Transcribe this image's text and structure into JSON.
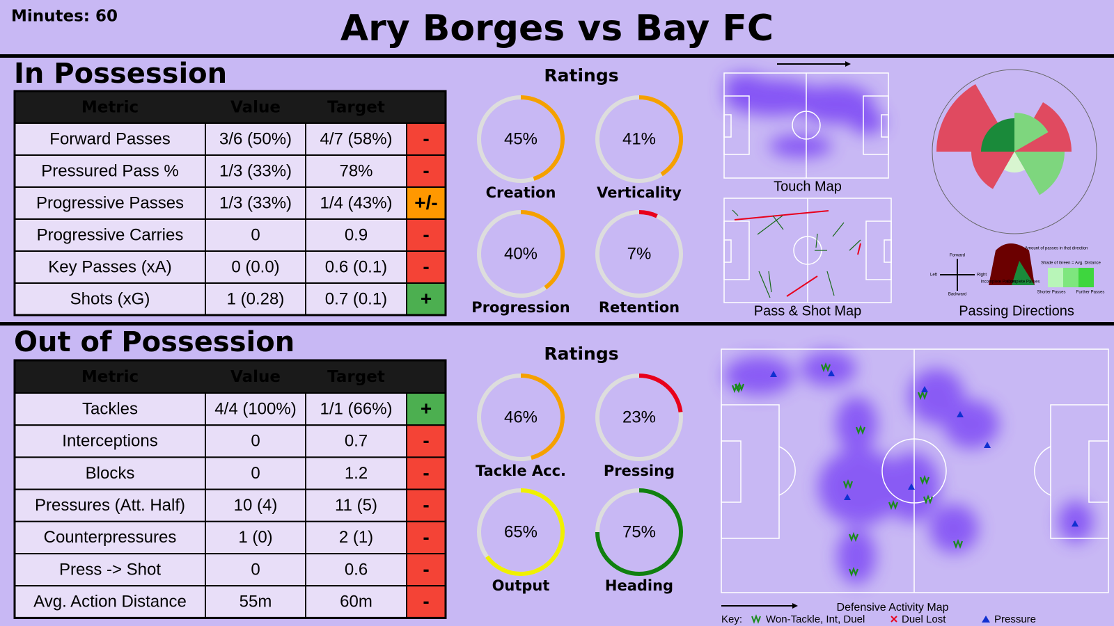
{
  "header": {
    "minutes": "Minutes: 60",
    "title": "Ary Borges vs Bay FC"
  },
  "in_possession": {
    "title": "In Possession",
    "columns": [
      "Metric",
      "Value",
      "Target"
    ],
    "rows": [
      {
        "metric": "Forward Passes",
        "value": "3/6 (50%)",
        "target": "4/7 (58%)",
        "status": "-",
        "color": "#f44336"
      },
      {
        "metric": "Pressured Pass %",
        "value": "1/3 (33%)",
        "target": "78%",
        "status": "-",
        "color": "#f44336"
      },
      {
        "metric": "Progressive Passes",
        "value": "1/3 (33%)",
        "target": "1/4 (43%)",
        "status": "+/-",
        "color": "#ff9800"
      },
      {
        "metric": "Progressive Carries",
        "value": "0",
        "target": "0.9",
        "status": "-",
        "color": "#f44336"
      },
      {
        "metric": "Key Passes (xA)",
        "value": "0 (0.0)",
        "target": "0.6 (0.1)",
        "status": "-",
        "color": "#f44336"
      },
      {
        "metric": "Shots (xG)",
        "value": "1 (0.28)",
        "target": "0.7 (0.1)",
        "status": "+",
        "color": "#4caf50"
      }
    ],
    "ratings": {
      "title": "Ratings",
      "items": [
        {
          "name": "Creation",
          "value": 45,
          "value_label": "45%",
          "color": "#f5a000"
        },
        {
          "name": "Verticality",
          "value": 41,
          "value_label": "41%",
          "color": "#f5a000"
        },
        {
          "name": "Progression",
          "value": 40,
          "value_label": "40%",
          "color": "#f5a000"
        },
        {
          "name": "Retention",
          "value": 7,
          "value_label": "7%",
          "color": "#e8001c"
        }
      ]
    },
    "maps": {
      "touch_map": "Touch Map",
      "pass_shot_map": "Pass & Shot Map",
      "passing_directions": "Passing Directions",
      "legend": {
        "forward": "Forward",
        "left": "Left",
        "right": "Right",
        "backward": "Backward",
        "amount": "Amount of passes in that direction",
        "incomplete": "Incomplete Passes",
        "complete": "Complete Passes",
        "shade": "Shade of Green = Avg. Distance",
        "shorter": "Shorter Passes",
        "further": "Further Passes"
      }
    }
  },
  "out_of_possession": {
    "title": "Out of Possession",
    "columns": [
      "Metric",
      "Value",
      "Target"
    ],
    "rows": [
      {
        "metric": "Tackles",
        "value": "4/4 (100%)",
        "target": "1/1 (66%)",
        "status": "+",
        "color": "#4caf50"
      },
      {
        "metric": "Interceptions",
        "value": "0",
        "target": "0.7",
        "status": "-",
        "color": "#f44336"
      },
      {
        "metric": "Blocks",
        "value": "0",
        "target": "1.2",
        "status": "-",
        "color": "#f44336"
      },
      {
        "metric": "Pressures (Att. Half)",
        "value": "10 (4)",
        "target": "11 (5)",
        "status": "-",
        "color": "#f44336"
      },
      {
        "metric": "Counterpressures",
        "value": "1 (0)",
        "target": "2 (1)",
        "status": "-",
        "color": "#f44336"
      },
      {
        "metric": "Press -> Shot",
        "value": "0",
        "target": "0.6",
        "status": "-",
        "color": "#f44336"
      },
      {
        "metric": "Avg. Action Distance",
        "value": "55m",
        "target": "60m",
        "status": "-",
        "color": "#f44336"
      }
    ],
    "ratings": {
      "title": "Ratings",
      "items": [
        {
          "name": "Tackle Acc.",
          "value": 46,
          "value_label": "46%",
          "color": "#f5a000"
        },
        {
          "name": "Pressing",
          "value": 23,
          "value_label": "23%",
          "color": "#e8001c"
        },
        {
          "name": "Output",
          "value": 65,
          "value_label": "65%",
          "color": "#f0f000"
        },
        {
          "name": "Heading",
          "value": 75,
          "value_label": "75%",
          "color": "#108010"
        }
      ]
    },
    "map": {
      "title": "Defensive Activity Map",
      "key": "Key:",
      "won": "Won-Tackle, Int, Duel",
      "lost": "Duel Lost",
      "pressure": "Pressure"
    }
  }
}
